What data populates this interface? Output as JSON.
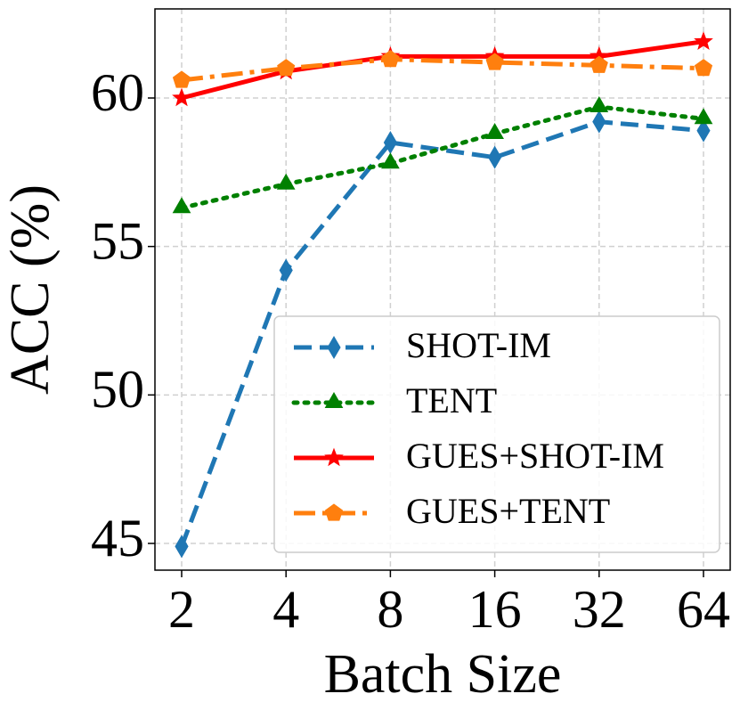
{
  "chart_data": {
    "type": "line",
    "x_label": "Batch Size",
    "y_label": "ACC (%)",
    "categories": [
      "2",
      "4",
      "8",
      "16",
      "32",
      "64"
    ],
    "ylim": [
      44.1,
      63
    ],
    "yticks": [
      45,
      50,
      55,
      60
    ],
    "grid": true,
    "legend": "lower right",
    "series": [
      {
        "name": "SHOT-IM",
        "color": "#1f77b4",
        "marker": "diamond",
        "linestyle": "dashed",
        "values": [
          44.9,
          54.2,
          58.5,
          58.0,
          59.2,
          58.9
        ]
      },
      {
        "name": "TENT",
        "color": "#008000",
        "marker": "triangle",
        "linestyle": "dotted",
        "values": [
          56.3,
          57.1,
          57.8,
          58.8,
          59.7,
          59.3
        ]
      },
      {
        "name": "GUES+SHOT-IM",
        "color": "#ff0000",
        "marker": "star",
        "linestyle": "solid",
        "values": [
          60.0,
          60.9,
          61.4,
          61.4,
          61.4,
          61.9
        ]
      },
      {
        "name": "GUES+TENT",
        "color": "#ff7f0e",
        "marker": "pentagon",
        "linestyle": "dashdot",
        "values": [
          60.6,
          61.0,
          61.3,
          61.2,
          61.1,
          61.0
        ]
      }
    ]
  }
}
